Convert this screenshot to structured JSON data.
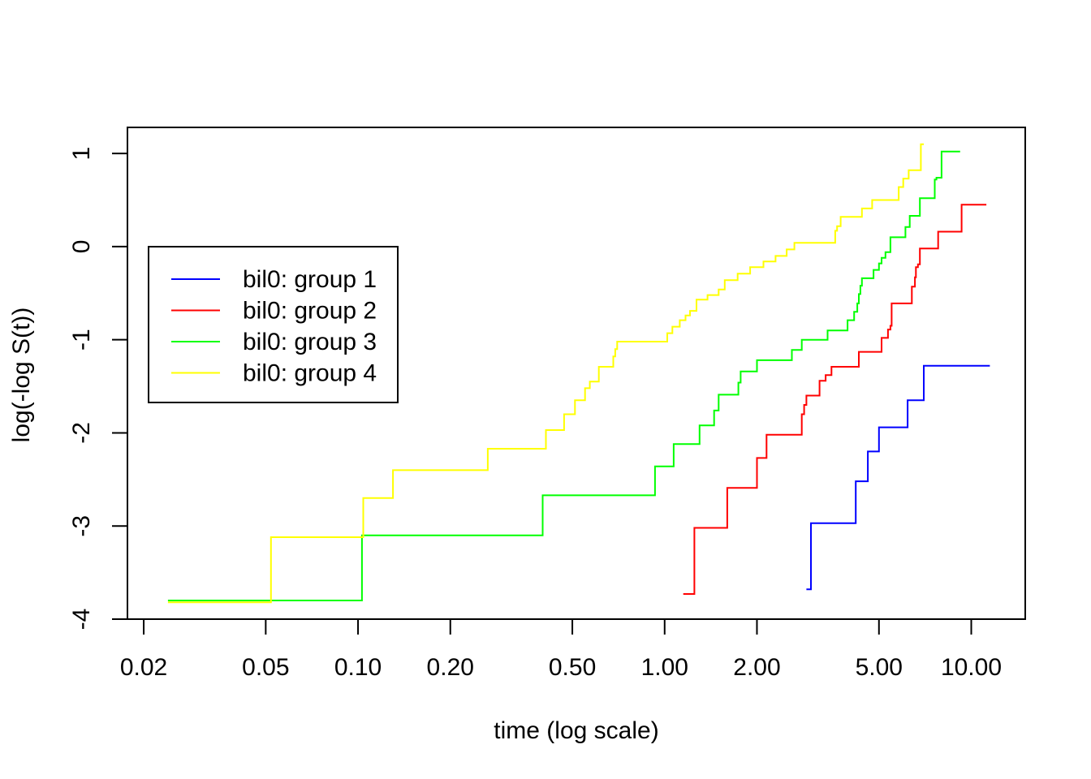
{
  "chart_data": {
    "type": "line",
    "step": true,
    "title": "",
    "xlabel": "time (log scale)",
    "ylabel": "log(-log S(t))",
    "x_scale": "log",
    "xlim": [
      0.0177,
      15
    ],
    "ylim": [
      -4.0,
      1.28
    ],
    "x_ticks": [
      0.02,
      0.05,
      0.1,
      0.2,
      0.5,
      1.0,
      2.0,
      5.0,
      10.0
    ],
    "x_tick_labels": [
      "0.02",
      "0.05",
      "0.10",
      "0.20",
      "0.50",
      "1.00",
      "2.00",
      "5.00",
      "10.00"
    ],
    "y_ticks": [
      -4,
      -3,
      -2,
      -1,
      0,
      1
    ],
    "y_tick_labels": [
      "-4",
      "-3",
      "-2",
      "-1",
      "0",
      "1"
    ],
    "grid": false,
    "legend": {
      "position": "top-left"
    },
    "series": [
      {
        "name": "bil0: group 1",
        "color": "#0000ff",
        "x": [
          2.9,
          3.0,
          4.2,
          4.6,
          5.0,
          6.2,
          7.0,
          11.5
        ],
        "y": [
          -3.68,
          -2.97,
          -2.52,
          -2.2,
          -1.94,
          -1.65,
          -1.28,
          -1.28
        ]
      },
      {
        "name": "bil0: group 2",
        "color": "#ff0000",
        "x": [
          1.15,
          1.25,
          1.6,
          2.0,
          2.15,
          2.8,
          2.85,
          2.9,
          3.2,
          3.35,
          3.5,
          4.3,
          5.1,
          5.35,
          5.45,
          5.5,
          6.4,
          6.55,
          6.6,
          6.7,
          6.8,
          7.8,
          9.3,
          11.2
        ],
        "y": [
          -3.73,
          -3.02,
          -2.59,
          -2.27,
          -2.02,
          -1.8,
          -1.7,
          -1.6,
          -1.44,
          -1.38,
          -1.29,
          -1.13,
          -0.98,
          -0.89,
          -0.85,
          -0.61,
          -0.43,
          -0.33,
          -0.22,
          -0.19,
          -0.02,
          0.16,
          0.45,
          0.45
        ]
      },
      {
        "name": "bil0: group 3",
        "color": "#00ff00",
        "x": [
          0.024,
          0.103,
          0.4,
          0.93,
          1.07,
          1.3,
          1.45,
          1.5,
          1.74,
          1.77,
          2.0,
          2.6,
          2.8,
          3.4,
          3.95,
          4.15,
          4.25,
          4.3,
          4.35,
          4.4,
          4.45,
          4.8,
          5.0,
          5.1,
          5.25,
          5.45,
          6.1,
          6.3,
          6.8,
          7.6,
          7.7,
          8.0,
          9.2
        ],
        "y": [
          -3.8,
          -3.1,
          -2.67,
          -2.36,
          -2.12,
          -1.92,
          -1.76,
          -1.59,
          -1.46,
          -1.34,
          -1.22,
          -1.11,
          -1.0,
          -0.9,
          -0.79,
          -0.7,
          -0.61,
          -0.51,
          -0.42,
          -0.34,
          -0.34,
          -0.25,
          -0.18,
          -0.12,
          -0.06,
          0.1,
          0.21,
          0.33,
          0.52,
          0.72,
          0.74,
          1.02,
          1.02
        ]
      },
      {
        "name": "bil0: group 4",
        "color": "#ffff00",
        "x": [
          0.024,
          0.052,
          0.104,
          0.13,
          0.265,
          0.41,
          0.47,
          0.51,
          0.55,
          0.57,
          0.61,
          0.68,
          0.69,
          0.7,
          1.02,
          1.06,
          1.12,
          1.17,
          1.21,
          1.27,
          1.38,
          1.5,
          1.57,
          1.73,
          1.9,
          2.1,
          2.3,
          2.5,
          2.65,
          2.8,
          3.6,
          3.65,
          3.75,
          4.4,
          4.75,
          5.8,
          6.0,
          6.25,
          6.3,
          6.85,
          7.0
        ],
        "y": [
          -3.82,
          -3.12,
          -2.7,
          -2.4,
          -2.17,
          -1.97,
          -1.8,
          -1.65,
          -1.52,
          -1.45,
          -1.29,
          -1.18,
          -1.1,
          -1.02,
          -0.93,
          -0.86,
          -0.79,
          -0.74,
          -0.69,
          -0.57,
          -0.52,
          -0.46,
          -0.36,
          -0.29,
          -0.22,
          -0.16,
          -0.1,
          -0.03,
          0.04,
          0.04,
          0.17,
          0.22,
          0.32,
          0.41,
          0.5,
          0.64,
          0.73,
          0.82,
          0.82,
          1.1,
          1.1
        ]
      }
    ]
  }
}
